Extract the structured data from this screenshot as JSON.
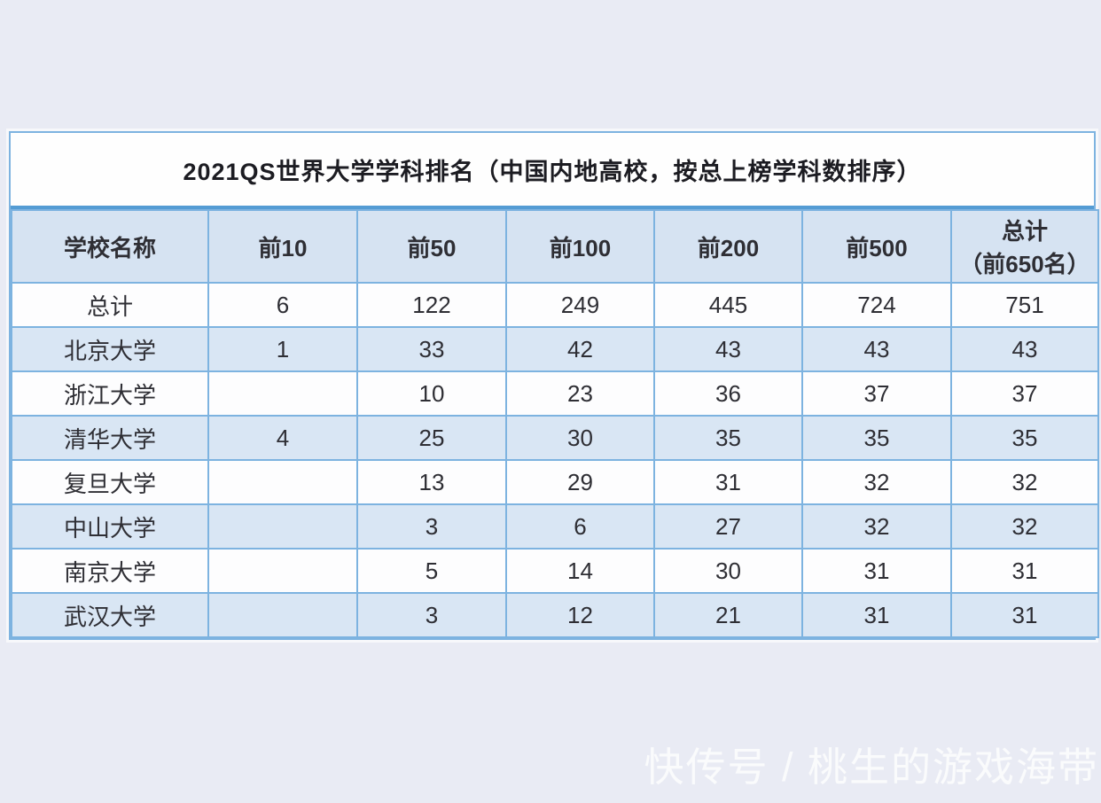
{
  "chart_data": {
    "type": "table",
    "title": "2021QS世界大学学科排名（中国内地高校，按总上榜学科数排序）",
    "columns": [
      {
        "label": "学校名称",
        "sublabel": ""
      },
      {
        "label": "前10",
        "sublabel": ""
      },
      {
        "label": "前50",
        "sublabel": ""
      },
      {
        "label": "前100",
        "sublabel": ""
      },
      {
        "label": "前200",
        "sublabel": ""
      },
      {
        "label": "前500",
        "sublabel": ""
      },
      {
        "label": "总计",
        "sublabel": "（前650名）"
      }
    ],
    "rows": [
      {
        "cells": [
          "总计",
          "6",
          "122",
          "249",
          "445",
          "724",
          "751"
        ]
      },
      {
        "cells": [
          "北京大学",
          "1",
          "33",
          "42",
          "43",
          "43",
          "43"
        ]
      },
      {
        "cells": [
          "浙江大学",
          "",
          "10",
          "23",
          "36",
          "37",
          "37"
        ]
      },
      {
        "cells": [
          "清华大学",
          "4",
          "25",
          "30",
          "35",
          "35",
          "35"
        ]
      },
      {
        "cells": [
          "复旦大学",
          "",
          "13",
          "29",
          "31",
          "32",
          "32"
        ]
      },
      {
        "cells": [
          "中山大学",
          "",
          "3",
          "6",
          "27",
          "32",
          "32"
        ]
      },
      {
        "cells": [
          "南京大学",
          "",
          "5",
          "14",
          "30",
          "31",
          "31"
        ]
      },
      {
        "cells": [
          "武汉大学",
          "",
          "3",
          "12",
          "21",
          "31",
          "31"
        ]
      }
    ],
    "layout_hints": {
      "row_striping": [
        "white",
        "light-blue"
      ],
      "first_data_row_is_totals": true
    }
  },
  "colors": {
    "page_background": "#e9ebf4",
    "row_white": "#fdfdfe",
    "row_blue": "#d9e6f4",
    "header_background": "#d6e3f2",
    "border": "#7db3e0",
    "title_divider": "#549cd4",
    "text": "#2e2e34",
    "watermark_text": "#ffffff"
  },
  "watermark": {
    "text": "快传号 / 桃生的游戏海带"
  }
}
